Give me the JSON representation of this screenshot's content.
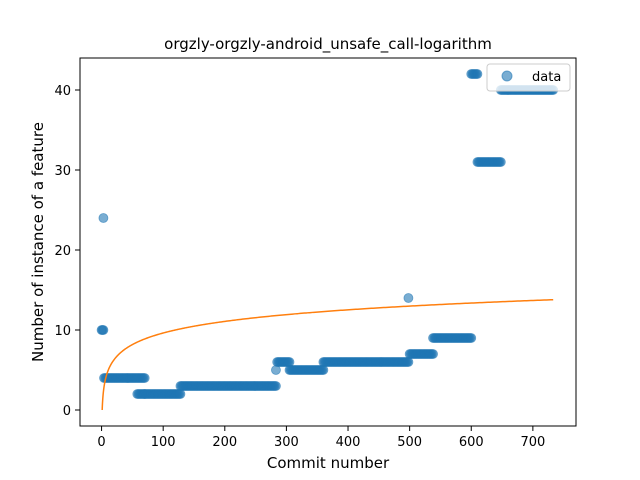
{
  "chart_data": {
    "type": "scatter",
    "title": "orgzly-orgzly-android_unsafe_call-logarithm",
    "xlabel": "Commit number",
    "ylabel": "Number of instance of a feature",
    "xlim": [
      -35,
      770
    ],
    "ylim": [
      -2,
      44
    ],
    "xticks": [
      0,
      100,
      200,
      300,
      400,
      500,
      600,
      700
    ],
    "yticks": [
      0,
      10,
      20,
      30,
      40
    ],
    "legend": {
      "position": "top-right",
      "entries": [
        "data"
      ]
    },
    "colors": {
      "data": "#1f77b4",
      "fit": "#ff7f0e"
    },
    "series": [
      {
        "name": "data",
        "kind": "points",
        "segments": [
          {
            "x_start": 0,
            "x_end": 3,
            "y": 10
          },
          {
            "x_start": 3,
            "x_end": 3,
            "y": 24
          },
          {
            "x_start": 4,
            "x_end": 70,
            "y": 4
          },
          {
            "x_start": 58,
            "x_end": 70,
            "y": 2
          },
          {
            "x_start": 70,
            "x_end": 128,
            "y": 2
          },
          {
            "x_start": 128,
            "x_end": 283,
            "y": 3
          },
          {
            "x_start": 283,
            "x_end": 283,
            "y": 5
          },
          {
            "x_start": 285,
            "x_end": 305,
            "y": 6
          },
          {
            "x_start": 305,
            "x_end": 360,
            "y": 5
          },
          {
            "x_start": 360,
            "x_end": 498,
            "y": 6
          },
          {
            "x_start": 498,
            "x_end": 498,
            "y": 14
          },
          {
            "x_start": 500,
            "x_end": 538,
            "y": 7
          },
          {
            "x_start": 538,
            "x_end": 600,
            "y": 9
          },
          {
            "x_start": 600,
            "x_end": 610,
            "y": 42
          },
          {
            "x_start": 610,
            "x_end": 648,
            "y": 31
          },
          {
            "x_start": 648,
            "x_end": 733,
            "y": 40
          }
        ]
      },
      {
        "name": "",
        "kind": "fit",
        "model": "logarithm",
        "a": 2.09,
        "b": 0,
        "x_range": [
          1,
          733
        ]
      }
    ]
  }
}
